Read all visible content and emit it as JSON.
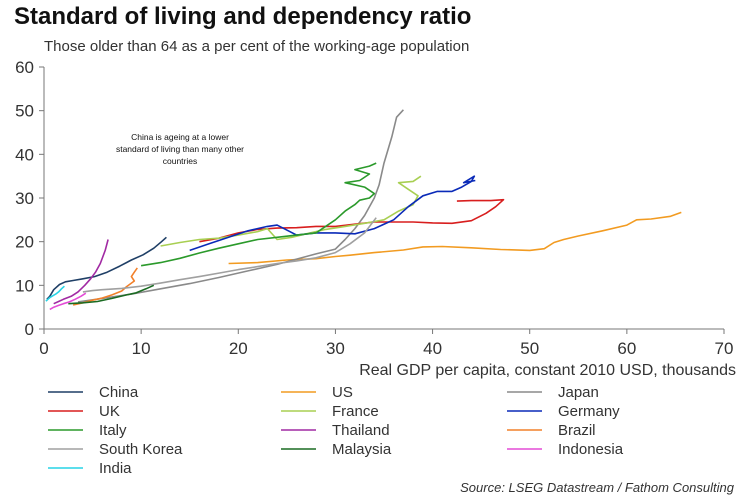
{
  "chart_data": {
    "type": "line",
    "title": "Standard of living and dependency ratio",
    "subtitle": "Those older than 64 as a per cent of the working-age population",
    "xlabel": "Real GDP per capita, constant 2010 USD, thousands",
    "ylabel": "",
    "xlim": [
      0,
      70
    ],
    "ylim": [
      0,
      60
    ],
    "x_ticks": [
      0,
      10,
      20,
      30,
      40,
      50,
      60,
      70
    ],
    "y_ticks": [
      0,
      10,
      20,
      30,
      40,
      50,
      60
    ],
    "grid": false,
    "legend_position": "bottom",
    "annotation": [
      "China is ageing at a lower",
      "standard of living than many other",
      "countries"
    ],
    "source": "Source: LSEG Datastream / Fathom Consulting",
    "series": [
      {
        "name": "China",
        "color": "#1f3f66",
        "x": [
          0.3,
          0.6,
          1.0,
          1.6,
          2.2,
          3.0,
          4.0,
          5.2,
          6.5,
          7.8,
          9.0,
          10.2,
          11.3,
          12.1,
          12.6
        ],
        "y": [
          6.8,
          7.5,
          9.0,
          10.2,
          10.8,
          11.1,
          11.5,
          12.0,
          13.0,
          14.4,
          15.8,
          17.0,
          18.5,
          20.0,
          21.0
        ]
      },
      {
        "name": "US",
        "color": "#f29b21",
        "x": [
          19,
          22,
          25,
          28,
          30,
          31.5,
          34,
          37,
          39,
          41,
          44,
          47,
          50,
          51.5,
          52.5,
          53.5,
          55,
          57.5,
          60,
          61,
          62.5,
          64.5,
          65.6
        ],
        "y": [
          15.0,
          15.2,
          15.8,
          16.1,
          16.6,
          16.9,
          17.5,
          18.1,
          18.8,
          18.9,
          18.6,
          18.2,
          18.0,
          18.4,
          19.8,
          20.5,
          21.3,
          22.5,
          23.8,
          25.0,
          25.2,
          25.8,
          26.7
        ]
      },
      {
        "name": "Japan",
        "color": "#8a8a8a",
        "x": [
          3.5,
          6,
          9,
          12,
          15,
          18,
          21,
          24,
          26,
          28,
          30,
          31,
          32,
          33,
          34,
          34.5,
          35,
          35.8,
          36.3,
          37.0
        ],
        "y": [
          6.2,
          7.0,
          8.0,
          9.2,
          10.4,
          11.8,
          13.3,
          14.8,
          16.0,
          17.2,
          18.3,
          20.5,
          23.0,
          26.0,
          30.0,
          33.0,
          38.0,
          44.0,
          48.5,
          50.2
        ]
      },
      {
        "name": "UK",
        "color": "#d81e1e",
        "x": [
          16,
          18,
          20,
          22,
          24,
          26,
          28,
          30,
          32,
          34,
          36,
          38,
          40,
          42,
          44,
          45.5,
          46.5,
          47.3,
          46.0,
          44.0,
          42.5
        ],
        "y": [
          20.0,
          20.8,
          22.0,
          22.8,
          23.1,
          23.2,
          23.5,
          23.5,
          24.0,
          24.5,
          24.5,
          24.5,
          24.3,
          24.2,
          24.8,
          26.5,
          28.0,
          29.6,
          29.4,
          29.4,
          29.3
        ]
      },
      {
        "name": "France",
        "color": "#a8cf52",
        "x": [
          12,
          14,
          16,
          18,
          20,
          22,
          23,
          24,
          25.5,
          27,
          29,
          31,
          33,
          35,
          36.5,
          38,
          38.5,
          37.5,
          36.5,
          38.0,
          38.8
        ],
        "y": [
          19.0,
          19.8,
          20.5,
          20.8,
          21.5,
          22.3,
          23.0,
          20.5,
          21.0,
          21.8,
          22.8,
          23.5,
          24.2,
          25.0,
          27.0,
          28.5,
          30.5,
          32.0,
          33.5,
          33.8,
          35.0
        ]
      },
      {
        "name": "Germany",
        "color": "#0a2ab8",
        "x": [
          15,
          17,
          19,
          21,
          23,
          24,
          26,
          28,
          30,
          32,
          34,
          36,
          37.5,
          39,
          40.5,
          42,
          43,
          44,
          44.3,
          43.2,
          44.4
        ],
        "y": [
          18.0,
          19.5,
          21.0,
          22.5,
          23.5,
          23.8,
          21.5,
          22.0,
          22.0,
          21.8,
          23.0,
          25.0,
          28.0,
          30.5,
          31.5,
          31.5,
          32.5,
          33.8,
          35.0,
          33.5,
          34.0
        ]
      },
      {
        "name": "Italy",
        "color": "#2b9a2b",
        "x": [
          10,
          12,
          14,
          16,
          18,
          20,
          22,
          24,
          26,
          28,
          30,
          31,
          32,
          32.5,
          33.5,
          34.0,
          33.0,
          31.0,
          32.5,
          33.5,
          32.0,
          33.5,
          34.2
        ],
        "y": [
          14.5,
          15.2,
          16.2,
          17.4,
          18.5,
          19.5,
          20.5,
          21.0,
          21.5,
          22.0,
          25.0,
          27.0,
          28.5,
          29.5,
          30.0,
          31.0,
          32.5,
          33.5,
          34.0,
          35.5,
          36.5,
          37.3,
          38.0
        ]
      },
      {
        "name": "Thailand",
        "color": "#a12aa3",
        "x": [
          1.0,
          1.5,
          2.0,
          2.8,
          3.5,
          4.2,
          4.8,
          5.3,
          5.8,
          6.3,
          6.6
        ],
        "y": [
          5.8,
          6.3,
          6.8,
          7.5,
          8.5,
          10.0,
          11.5,
          13.0,
          15.0,
          18.0,
          20.5
        ]
      },
      {
        "name": "Brazil",
        "color": "#f2802a",
        "x": [
          3.0,
          4.0,
          5.0,
          6.0,
          7.0,
          8.0,
          8.5,
          9.3,
          9.0,
          9.3,
          9.6
        ],
        "y": [
          5.5,
          6.0,
          6.6,
          7.1,
          7.8,
          8.7,
          9.7,
          11.0,
          12.0,
          13.0,
          14.0
        ]
      },
      {
        "name": "South Korea",
        "color": "#a0a0a0",
        "x": [
          4,
          5,
          6,
          8,
          10,
          12,
          14,
          16,
          18,
          20,
          22,
          24,
          26,
          28,
          30,
          31.5,
          33,
          34.2
        ],
        "y": [
          8.5,
          8.8,
          9.0,
          9.3,
          9.8,
          10.5,
          11.3,
          12.0,
          12.8,
          13.6,
          14.3,
          15.0,
          15.6,
          16.3,
          17.5,
          19.5,
          22.0,
          25.5
        ]
      },
      {
        "name": "Malaysia",
        "color": "#1a6b22",
        "x": [
          2.5,
          4.0,
          5.5,
          7.0,
          8.5,
          9.5,
          10.5,
          11.3
        ],
        "y": [
          5.8,
          6.0,
          6.3,
          7.0,
          7.8,
          8.3,
          9.2,
          10.0
        ]
      },
      {
        "name": "Indonesia",
        "color": "#e34bd6",
        "x": [
          0.6,
          1.0,
          1.5,
          2.0,
          2.6,
          3.2,
          3.8,
          4.3
        ],
        "y": [
          4.5,
          5.0,
          5.4,
          5.8,
          6.2,
          6.8,
          7.5,
          8.2
        ]
      },
      {
        "name": "India",
        "color": "#27d4e6",
        "x": [
          0.2,
          0.4,
          0.6,
          0.9,
          1.2,
          1.5,
          1.8,
          2.1
        ],
        "y": [
          6.4,
          6.8,
          7.2,
          7.6,
          8.0,
          8.5,
          9.2,
          9.8
        ]
      }
    ]
  }
}
